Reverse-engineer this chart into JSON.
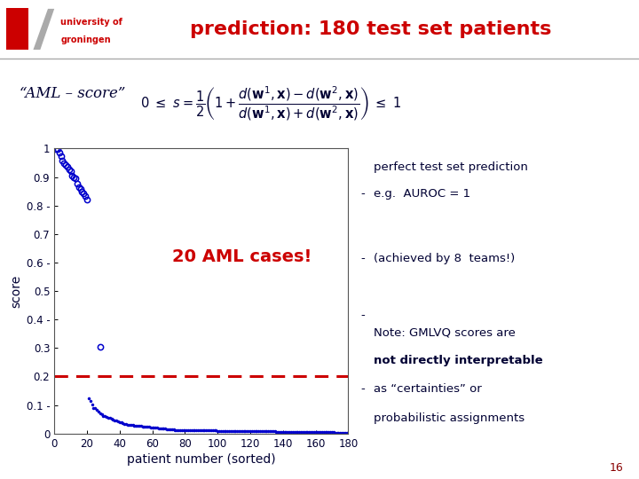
{
  "title": "prediction: 180 test set patients",
  "title_color": "#cc0000",
  "title_fontsize": 16,
  "xlabel": "patient number (sorted)",
  "ylabel": "score",
  "xlim": [
    0,
    180
  ],
  "ylim": [
    0,
    1.0
  ],
  "yticks": [
    0,
    0.1,
    0.2,
    0.3,
    0.4,
    0.5,
    0.6,
    0.7,
    0.8,
    0.9,
    1.0
  ],
  "xticks": [
    0,
    20,
    40,
    60,
    80,
    100,
    120,
    140,
    160,
    180
  ],
  "dashed_line_y": 0.2,
  "dashed_line_color": "#cc0000",
  "dot_color": "#0000cc",
  "aml_label": "20 AML cases!",
  "aml_label_color": "#cc0000",
  "aml_label_fontsize": 14,
  "annotation_formula_text": "“AML – score”",
  "right_dash_color": "#000033",
  "right_text1": "perfect test set prediction",
  "right_text2": "e.g.  AUROC = 1",
  "right_text3": "(achieved by 8  teams!)",
  "right_text4_line1": "Note: GMLVQ scores are",
  "right_text4_line2": "not directly interpretable",
  "right_text4_line3": "as “certainties” or",
  "right_text4_line4": "probabilistic assignments",
  "slide_number": "16",
  "bg_color": "#ffffff",
  "header_bg": "#e0e0e0",
  "text_color": "#000033"
}
